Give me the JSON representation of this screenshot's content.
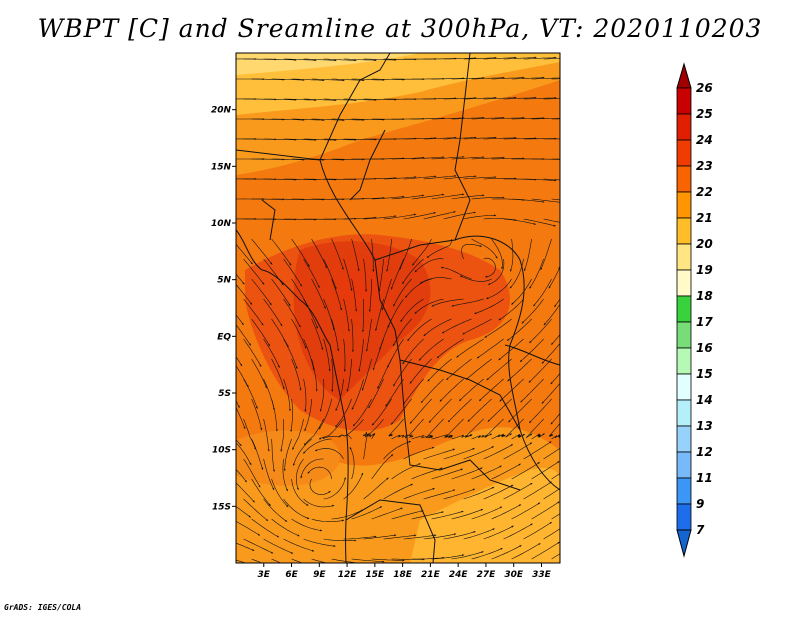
{
  "title": "WBPT [C] and Sreamline at 300hPa, VT: 2020110203",
  "credit": "GrADS: IGES/COLA",
  "map": {
    "lon_range": [
      0,
      35
    ],
    "lat_range": [
      -20,
      25
    ],
    "lat_ticks": [
      {
        "value": 20,
        "label": "20N"
      },
      {
        "value": 15,
        "label": "15N"
      },
      {
        "value": 10,
        "label": "10N"
      },
      {
        "value": 5,
        "label": "5N"
      },
      {
        "value": 0,
        "label": "EQ"
      },
      {
        "value": -5,
        "label": "5S"
      },
      {
        "value": -10,
        "label": "10S"
      },
      {
        "value": -15,
        "label": "15S"
      }
    ],
    "lon_ticks": [
      {
        "value": 3,
        "label": "3E"
      },
      {
        "value": 6,
        "label": "6E"
      },
      {
        "value": 9,
        "label": "9E"
      },
      {
        "value": 12,
        "label": "12E"
      },
      {
        "value": 15,
        "label": "15E"
      },
      {
        "value": 18,
        "label": "18E"
      },
      {
        "value": 21,
        "label": "21E"
      },
      {
        "value": 24,
        "label": "24E"
      },
      {
        "value": 27,
        "label": "27E"
      },
      {
        "value": 30,
        "label": "30E"
      },
      {
        "value": 33,
        "label": "33E"
      }
    ]
  },
  "colorbar": {
    "levels": [
      {
        "label": "26",
        "color": "#a00000"
      },
      {
        "label": "25",
        "color": "#c80000"
      },
      {
        "label": "24",
        "color": "#e01e00"
      },
      {
        "label": "23",
        "color": "#f03c00"
      },
      {
        "label": "22",
        "color": "#fa6400"
      },
      {
        "label": "21",
        "color": "#ff9600"
      },
      {
        "label": "20",
        "color": "#ffbe28"
      },
      {
        "label": "19",
        "color": "#ffe682"
      },
      {
        "label": "18",
        "color": "#fffac8"
      },
      {
        "label": "17",
        "color": "#37d23c"
      },
      {
        "label": "16",
        "color": "#78dc78"
      },
      {
        "label": "15",
        "color": "#b4fab4"
      },
      {
        "label": "14",
        "color": "#e1ffff"
      },
      {
        "label": "13",
        "color": "#b4f0fa"
      },
      {
        "label": "12",
        "color": "#96d2fa"
      },
      {
        "label": "11",
        "color": "#78b9fa"
      },
      {
        "label": "9",
        "color": "#3c96f5"
      },
      {
        "label": "7",
        "color": "#1e6eeb"
      }
    ],
    "bottom_color": "#1464d2"
  }
}
